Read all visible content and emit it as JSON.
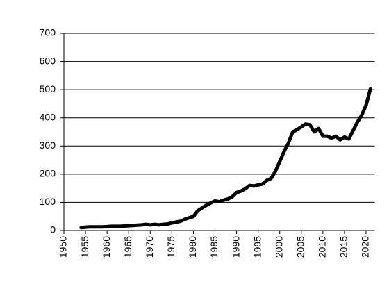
{
  "chart_data": {
    "type": "line",
    "x": [
      1954,
      1955,
      1956,
      1957,
      1958,
      1959,
      1960,
      1961,
      1962,
      1963,
      1964,
      1965,
      1966,
      1967,
      1968,
      1969,
      1970,
      1971,
      1972,
      1973,
      1974,
      1975,
      1976,
      1977,
      1978,
      1979,
      1980,
      1981,
      1982,
      1983,
      1984,
      1985,
      1986,
      1987,
      1988,
      1989,
      1990,
      1991,
      1992,
      1993,
      1994,
      1995,
      1996,
      1997,
      1998,
      1999,
      2000,
      2001,
      2002,
      2003,
      2004,
      2005,
      2006,
      2007,
      2008,
      2009,
      2010,
      2011,
      2012,
      2013,
      2014,
      2015,
      2016,
      2017,
      2018,
      2019,
      2020,
      2021
    ],
    "series": [
      {
        "color": "#000000",
        "values": [
          10,
          12,
          13,
          13,
          13,
          13,
          14,
          15,
          15,
          15,
          16,
          17,
          18,
          19,
          20,
          22,
          20,
          22,
          20,
          22,
          23,
          27,
          30,
          33,
          40,
          45,
          50,
          70,
          80,
          90,
          98,
          105,
          102,
          108,
          112,
          120,
          135,
          140,
          148,
          160,
          158,
          162,
          165,
          178,
          185,
          210,
          245,
          280,
          310,
          350,
          358,
          368,
          378,
          375,
          350,
          362,
          335,
          335,
          328,
          335,
          322,
          332,
          325,
          355,
          385,
          410,
          445,
          502
        ]
      }
    ],
    "xlim": [
      1950,
      2022
    ],
    "xticks": [
      1950,
      1955,
      1960,
      1965,
      1970,
      1975,
      1980,
      1985,
      1990,
      1995,
      2000,
      2005,
      2010,
      2015,
      2020
    ],
    "ylim": [
      0,
      700
    ],
    "yticks": [
      0,
      100,
      200,
      300,
      400,
      500,
      600,
      700
    ],
    "grid": true
  }
}
